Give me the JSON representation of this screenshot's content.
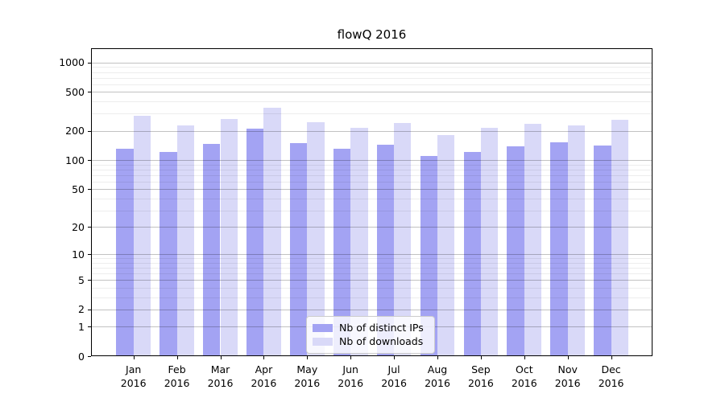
{
  "title": "flowQ 2016",
  "legend": {
    "items": [
      {
        "label": "Nb of distinct IPs",
        "color": "#a3a3f3"
      },
      {
        "label": "Nb of downloads",
        "color": "#d9d9f8"
      }
    ],
    "position": "lower center"
  },
  "chart_data": {
    "type": "bar",
    "title": "flowQ 2016",
    "categories": [
      "Jan",
      "Feb",
      "Mar",
      "Apr",
      "May",
      "Jun",
      "Jul",
      "Aug",
      "Sep",
      "Oct",
      "Nov",
      "Dec"
    ],
    "x_tick_year": "2016",
    "series": [
      {
        "name": "Nb of distinct IPs",
        "color": "#a3a3f3",
        "values": [
          131,
          122,
          147,
          209,
          150,
          131,
          145,
          111,
          120,
          139,
          152,
          141
        ]
      },
      {
        "name": "Nb of downloads",
        "color": "#d9d9f8",
        "values": [
          285,
          228,
          266,
          342,
          246,
          214,
          240,
          182,
          214,
          234,
          225,
          261
        ]
      }
    ],
    "xlabel": "",
    "ylabel": "",
    "y_scale": "log10(1+y)",
    "ylim": [
      0,
      1400
    ],
    "y_major_ticks": [
      0,
      1,
      2,
      5,
      10,
      20,
      50,
      100,
      200,
      500,
      1000
    ],
    "y_minor_gridlines": [
      3,
      4,
      6,
      7,
      8,
      9,
      30,
      40,
      60,
      70,
      80,
      90,
      300,
      400,
      600,
      700,
      800,
      900
    ],
    "grid": "on",
    "legend_position": "lower center"
  }
}
